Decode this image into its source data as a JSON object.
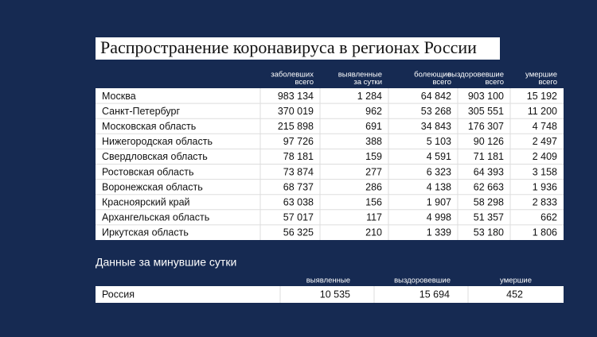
{
  "title": "Распространение коронавируса в регионах России",
  "regions": {
    "columns": [
      [
        "заболевших",
        "всего"
      ],
      [
        "выявленные",
        "за сутки"
      ],
      [
        "болеющие",
        "всего"
      ],
      [
        "выздоровевшие",
        "всего"
      ],
      [
        "умершие",
        "всего"
      ]
    ],
    "rows": [
      [
        "Москва",
        "983 134",
        "1 284",
        "64 842",
        "903 100",
        "15 192"
      ],
      [
        "Санкт-Петербург",
        "370 019",
        "962",
        "53 268",
        "305 551",
        "11 200"
      ],
      [
        "Московская область",
        "215 898",
        "691",
        "34 843",
        "176 307",
        "4 748"
      ],
      [
        "Нижегородская область",
        "97 726",
        "388",
        "5 103",
        "90 126",
        "2 497"
      ],
      [
        "Свердловская область",
        "78 181",
        "159",
        "4 591",
        "71 181",
        "2 409"
      ],
      [
        "Ростовская область",
        "73 874",
        "277",
        "6 323",
        "64 393",
        "3 158"
      ],
      [
        "Воронежская область",
        "68 737",
        "286",
        "4 138",
        "62 663",
        "1 936"
      ],
      [
        "Красноярский край",
        "63 038",
        "156",
        "1 907",
        "58 298",
        "2 833"
      ],
      [
        "Архангельская область",
        "57 017",
        "117",
        "4 998",
        "51 357",
        "662"
      ],
      [
        "Иркутская область",
        "56 325",
        "210",
        "1 339",
        "53 180",
        "1 806"
      ]
    ]
  },
  "daily": {
    "title": "Данные за минувшие сутки",
    "columns": [
      "выявленные",
      "выздоровевшие",
      "умершие"
    ],
    "rows": [
      [
        "Россия",
        "10 535",
        "15 694",
        "452"
      ]
    ]
  }
}
